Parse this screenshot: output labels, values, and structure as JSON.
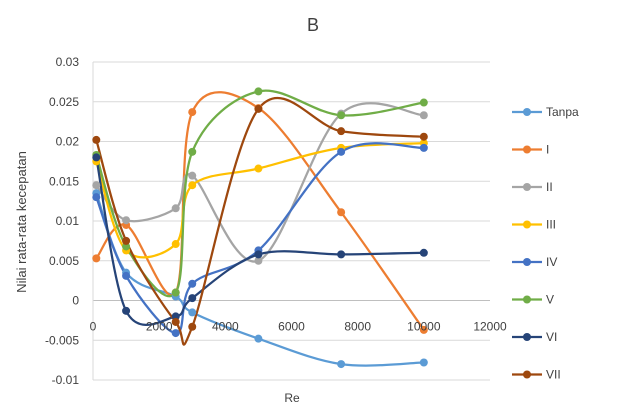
{
  "chart_data": {
    "type": "scatter",
    "title": "B",
    "xlabel": "Re",
    "ylabel": "Nilai rata-rata kecepatan",
    "xlim": [
      0,
      12000
    ],
    "ylim": [
      -0.01,
      0.03
    ],
    "x_ticks": [
      0,
      2000,
      4000,
      6000,
      8000,
      10000,
      12000
    ],
    "y_ticks": [
      -0.01,
      -0.005,
      0,
      0.005,
      0.01,
      0.015,
      0.02,
      0.025,
      0.03
    ],
    "x_tick_labels": [
      "0",
      "2000",
      "4000",
      "6000",
      "8000",
      "10000",
      "12000"
    ],
    "y_tick_labels": [
      "-0.01",
      "-0.005",
      "0",
      "0.005",
      "0.01",
      "0.015",
      "0.02",
      "0.025",
      "0.03"
    ],
    "grid": "horizontal",
    "legend_position": "right",
    "smooth_lines": true,
    "x": [
      100,
      1000,
      2500,
      3000,
      5000,
      7500,
      10000
    ],
    "series": [
      {
        "name": "Tanpa",
        "color": "#5b9bd5",
        "values": [
          0.0135,
          0.0035,
          0.0005,
          -0.0015,
          -0.0048,
          -0.008,
          -0.0078
        ]
      },
      {
        "name": "I",
        "color": "#ed7d31",
        "values": [
          0.0053,
          0.0095,
          0.001,
          0.0237,
          0.0242,
          0.0111,
          -0.0037
        ]
      },
      {
        "name": "II",
        "color": "#a5a5a5",
        "values": [
          0.0145,
          0.0101,
          0.0116,
          0.0157,
          0.005,
          0.0235,
          0.0233
        ]
      },
      {
        "name": "III",
        "color": "#ffc000",
        "values": [
          0.0175,
          0.0063,
          0.0071,
          0.0145,
          0.0166,
          0.0192,
          0.0198
        ]
      },
      {
        "name": "IV",
        "color": "#4472c4",
        "values": [
          0.013,
          0.0031,
          -0.0041,
          0.0021,
          0.0063,
          0.0187,
          0.0192
        ]
      },
      {
        "name": "V",
        "color": "#70ad47",
        "values": [
          0.0183,
          0.0068,
          0.001,
          0.0187,
          0.0263,
          0.0233,
          0.0249
        ]
      },
      {
        "name": "VI",
        "color": "#264478",
        "values": [
          0.018,
          -0.0013,
          -0.002,
          0.0003,
          0.0058,
          0.0058,
          0.006
        ]
      },
      {
        "name": "VII",
        "color": "#9e480e",
        "values": [
          0.0202,
          0.0075,
          -0.0027,
          -0.0033,
          0.0241,
          0.0213,
          0.0206
        ]
      }
    ]
  }
}
